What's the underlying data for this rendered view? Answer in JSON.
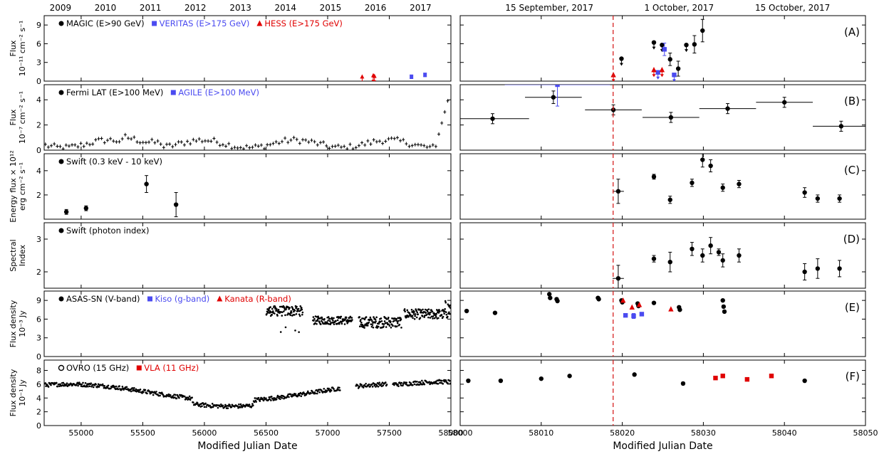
{
  "chart_data": {
    "type": "scatter",
    "xlabel": "Modified Julian Date",
    "top_axis_left": {
      "labels": [
        "2009",
        "2010",
        "2011",
        "2012",
        "2013",
        "2014",
        "2015",
        "2016",
        "2017"
      ],
      "mjd": [
        54832,
        55197,
        55562,
        55927,
        56293,
        56658,
        57023,
        57388,
        57754
      ]
    },
    "top_axis_right": {
      "labels": [
        "15 September, 2017",
        "1 October, 2017",
        "15 October, 2017"
      ],
      "mjd": [
        58011,
        58027,
        58041
      ]
    },
    "xlim_left": [
      54700,
      58000
    ],
    "xlim_right": [
      58000,
      58050
    ],
    "xticks_left": [
      55000,
      55500,
      56000,
      56500,
      57000,
      57500,
      58000
    ],
    "xticks_right": [
      58000,
      58010,
      58020,
      58030,
      58040,
      58050
    ],
    "event_mjd": 58018.87,
    "panels": [
      {
        "id": "A",
        "label": "(A)",
        "ylabel": [
          "Flux",
          "10⁻¹¹ cm⁻² s⁻¹"
        ],
        "ylim": [
          0,
          10.5
        ],
        "yticks": [
          0,
          3,
          6,
          9
        ],
        "legend": [
          {
            "marker": "circle",
            "color": "#000000",
            "text": "MAGIC (E>90 GeV)"
          },
          {
            "marker": "square",
            "color": "#4b4bf0",
            "text": "VERITAS (E>175 GeV)"
          },
          {
            "marker": "triangle",
            "color": "#e00000",
            "text": "HESS (E>175 GeV)"
          }
        ],
        "series": [
          {
            "name": "MAGIC",
            "marker": "circle",
            "color": "#000000",
            "points": [
              {
                "x": 58019.9,
                "y": 3.6,
                "ul": true
              },
              {
                "x": 58023.9,
                "y": 6.2,
                "ul": true
              },
              {
                "x": 58024.9,
                "y": 5.8,
                "ul": true
              },
              {
                "x": 58025.9,
                "y": 3.5,
                "e": 1.0
              },
              {
                "x": 58026.9,
                "y": 2.0,
                "e": 1.2
              },
              {
                "x": 58027.9,
                "y": 5.8,
                "ul": true
              },
              {
                "x": 58028.9,
                "y": 5.9,
                "e": 1.4
              },
              {
                "x": 58029.9,
                "y": 8.1,
                "e": 1.8
              }
            ]
          },
          {
            "name": "VERITAS",
            "marker": "square",
            "color": "#4b4bf0",
            "points": [
              {
                "x": 57680,
                "y": 0.7,
                "e": 0.3
              },
              {
                "x": 57790,
                "y": 1.0,
                "e": 0.3
              },
              {
                "x": 58024.4,
                "y": 1.4,
                "ul": true
              },
              {
                "x": 58025.2,
                "y": 5.1,
                "e": 1.0
              },
              {
                "x": 58026.4,
                "y": 1.0,
                "ul": true
              }
            ]
          },
          {
            "name": "HESS",
            "marker": "triangle",
            "color": "#e00000",
            "points": [
              {
                "x": 57280,
                "y": 0.7,
                "ul": true
              },
              {
                "x": 57370,
                "y": 0.9,
                "ul": true
              },
              {
                "x": 57380,
                "y": 0.8,
                "ul": true
              },
              {
                "x": 58018.9,
                "y": 1.0,
                "ul": true
              },
              {
                "x": 58023.9,
                "y": 1.8,
                "ul": true
              },
              {
                "x": 58024.9,
                "y": 1.8,
                "ul": true
              }
            ]
          }
        ]
      },
      {
        "id": "B",
        "label": "(B)",
        "ylabel": [
          "Flux",
          "10⁻⁷ cm⁻² s⁻¹"
        ],
        "ylim": [
          0,
          5.2
        ],
        "yticks": [
          0,
          2,
          4
        ],
        "legend": [
          {
            "marker": "circle",
            "color": "#000000",
            "text": "Fermi LAT (E>100 MeV)"
          },
          {
            "marker": "square",
            "color": "#4b4bf0",
            "text": "AGILE (E>100 MeV)"
          }
        ],
        "series": [
          {
            "name": "Fermi LAT",
            "marker": "circle",
            "color": "#000000",
            "points": [
              {
                "x": 58004.0,
                "y": 2.5,
                "e": 0.4,
                "xe": 4.5
              },
              {
                "x": 58011.5,
                "y": 4.2,
                "e": 0.5,
                "xe": 3.5
              },
              {
                "x": 58018.9,
                "y": 3.2,
                "e": 0.4,
                "xe": 3.5
              },
              {
                "x": 58026.0,
                "y": 2.6,
                "e": 0.4,
                "xe": 3.5
              },
              {
                "x": 58033.0,
                "y": 3.3,
                "e": 0.4,
                "xe": 3.5
              },
              {
                "x": 58040.0,
                "y": 3.8,
                "e": 0.4,
                "xe": 3.5
              },
              {
                "x": 58047.0,
                "y": 1.9,
                "e": 0.4,
                "xe": 3.5
              }
            ]
          },
          {
            "name": "AGILE",
            "marker": "square",
            "color": "#4b4bf0",
            "points": [
              {
                "x": 58012.0,
                "y": 5.2,
                "e": 1.7,
                "xe": 6.5
              }
            ]
          }
        ],
        "fermi_long_term_weekly": "dense cross markers between 0.1 and 1.5 from MJD 54700 to 57900, rising to about 3.7 near MJD 57950"
      },
      {
        "id": "C",
        "label": "(C)",
        "ylabel": [
          "Energy flux × 10¹²",
          "erg cm⁻² s⁻¹"
        ],
        "ylim": [
          0,
          5.4
        ],
        "yticks": [
          2,
          4
        ],
        "legend": [
          {
            "marker": "circle",
            "color": "#000000",
            "text": "Swift (0.3 keV - 10 keV)"
          }
        ],
        "series": [
          {
            "name": "Swift XRT",
            "marker": "circle",
            "color": "#000000",
            "points": [
              {
                "x": 54880,
                "y": 0.6,
                "e": 0.2
              },
              {
                "x": 55040,
                "y": 0.9,
                "e": 0.2
              },
              {
                "x": 55530,
                "y": 2.9,
                "e": 0.7
              },
              {
                "x": 55770,
                "y": 1.2,
                "e": 1.0
              },
              {
                "x": 58019.5,
                "y": 2.3,
                "e": 1.0,
                "xe": 0.7
              },
              {
                "x": 58023.9,
                "y": 3.5,
                "e": 0.2
              },
              {
                "x": 58025.9,
                "y": 1.6,
                "e": 0.3
              },
              {
                "x": 58028.6,
                "y": 3.0,
                "e": 0.3
              },
              {
                "x": 58029.9,
                "y": 4.9,
                "e": 0.6
              },
              {
                "x": 58030.9,
                "y": 4.4,
                "e": 0.5
              },
              {
                "x": 58032.4,
                "y": 2.6,
                "e": 0.3
              },
              {
                "x": 58034.4,
                "y": 2.9,
                "e": 0.3
              },
              {
                "x": 58042.5,
                "y": 2.2,
                "e": 0.4
              },
              {
                "x": 58044.1,
                "y": 1.7,
                "e": 0.3
              },
              {
                "x": 58046.8,
                "y": 1.7,
                "e": 0.3
              }
            ]
          }
        ]
      },
      {
        "id": "D",
        "label": "(D)",
        "ylabel": [
          "Spectral",
          "Index"
        ],
        "ylim": [
          1.5,
          3.5
        ],
        "yticks": [
          2,
          3
        ],
        "legend": [
          {
            "marker": "circle",
            "color": "#000000",
            "text": "Swift (photon index)"
          }
        ],
        "series": [
          {
            "name": "Swift photon index",
            "marker": "circle",
            "color": "#000000",
            "points": [
              {
                "x": 58019.5,
                "y": 1.8,
                "e": 0.4,
                "xe": 0.7
              },
              {
                "x": 58023.9,
                "y": 2.4,
                "e": 0.1
              },
              {
                "x": 58025.9,
                "y": 2.3,
                "e": 0.3
              },
              {
                "x": 58028.6,
                "y": 2.7,
                "e": 0.2
              },
              {
                "x": 58029.9,
                "y": 2.5,
                "e": 0.2
              },
              {
                "x": 58030.9,
                "y": 2.8,
                "e": 0.25
              },
              {
                "x": 58031.9,
                "y": 2.6,
                "e": 0.1
              },
              {
                "x": 58032.4,
                "y": 2.35,
                "e": 0.2
              },
              {
                "x": 58034.4,
                "y": 2.5,
                "e": 0.2
              },
              {
                "x": 58042.5,
                "y": 2.0,
                "e": 0.25
              },
              {
                "x": 58044.1,
                "y": 2.1,
                "e": 0.3
              },
              {
                "x": 58046.8,
                "y": 2.1,
                "e": 0.25
              }
            ]
          }
        ]
      },
      {
        "id": "E",
        "label": "(E)",
        "ylabel": [
          "Flux density",
          "10⁻³ Jy"
        ],
        "ylim": [
          0,
          10.5
        ],
        "yticks": [
          0,
          3,
          6,
          9
        ],
        "legend": [
          {
            "marker": "circle",
            "color": "#000000",
            "text": "ASAS-SN (V-band)"
          },
          {
            "marker": "square",
            "color": "#4b4bf0",
            "text": "Kiso (g-band)"
          },
          {
            "marker": "triangle",
            "color": "#e00000",
            "text": "Kanata (R-band)"
          }
        ],
        "series": [
          {
            "name": "ASAS-SN",
            "marker": "circle",
            "color": "#000000",
            "points": [
              {
                "x": 58000.8,
                "y": 7.3
              },
              {
                "x": 58004.3,
                "y": 7.0
              },
              {
                "x": 58011.0,
                "y": 10.0
              },
              {
                "x": 58011.1,
                "y": 9.4
              },
              {
                "x": 58011.9,
                "y": 9.2
              },
              {
                "x": 58012.0,
                "y": 8.9
              },
              {
                "x": 58017.0,
                "y": 9.4
              },
              {
                "x": 58017.1,
                "y": 9.2
              },
              {
                "x": 58019.9,
                "y": 9.0
              },
              {
                "x": 58020.0,
                "y": 8.7
              },
              {
                "x": 58021.9,
                "y": 8.5
              },
              {
                "x": 58022.0,
                "y": 8.1
              },
              {
                "x": 58023.9,
                "y": 8.6
              },
              {
                "x": 58027.0,
                "y": 7.9
              },
              {
                "x": 58027.1,
                "y": 7.5
              },
              {
                "x": 58032.4,
                "y": 9.0
              },
              {
                "x": 58032.5,
                "y": 8.0
              },
              {
                "x": 58032.6,
                "y": 7.2
              }
            ]
          },
          {
            "name": "Kiso",
            "marker": "square",
            "color": "#4b4bf0",
            "points": [
              {
                "x": 58020.4,
                "y": 6.6
              },
              {
                "x": 58021.4,
                "y": 6.5,
                "e": 0.4
              },
              {
                "x": 58022.4,
                "y": 6.8
              }
            ]
          },
          {
            "name": "Kanata",
            "marker": "triangle",
            "color": "#e00000",
            "points": [
              {
                "x": 58020.1,
                "y": 9.0
              },
              {
                "x": 58021.2,
                "y": 7.9
              },
              {
                "x": 58022.1,
                "y": 8.3
              },
              {
                "x": 58026.0,
                "y": 7.6
              }
            ]
          }
        ],
        "asassn_long_term": "dense markers between 4 and 10 from MJD 56500 to 58000"
      },
      {
        "id": "F",
        "label": "(F)",
        "ylabel": [
          "Flux density",
          "10⁻¹ Jy"
        ],
        "ylim": [
          0,
          9.5
        ],
        "yticks": [
          0,
          2,
          4,
          6,
          8
        ],
        "legend": [
          {
            "marker": "circle-open",
            "color": "#000000",
            "text": "OVRO (15 GHz)"
          },
          {
            "marker": "square",
            "color": "#e00000",
            "text": "VLA (11 GHz)"
          }
        ],
        "series": [
          {
            "name": "OVRO",
            "marker": "circle",
            "color": "#000000",
            "points": [
              {
                "x": 58001.0,
                "y": 6.5
              },
              {
                "x": 58005.0,
                "y": 6.5
              },
              {
                "x": 58010.0,
                "y": 6.8
              },
              {
                "x": 58013.5,
                "y": 7.2
              },
              {
                "x": 58021.5,
                "y": 7.4
              },
              {
                "x": 58027.5,
                "y": 6.1
              },
              {
                "x": 58042.5,
                "y": 6.5
              }
            ]
          },
          {
            "name": "VLA",
            "marker": "square",
            "color": "#e00000",
            "points": [
              {
                "x": 58031.5,
                "y": 6.9
              },
              {
                "x": 58032.4,
                "y": 7.2
              },
              {
                "x": 58035.4,
                "y": 6.7
              },
              {
                "x": 58038.4,
                "y": 7.2
              }
            ]
          }
        ],
        "ovro_long_term": "dense markers between 3 and 7 from MJD 54700 to 58000"
      }
    ]
  },
  "colors": {
    "black": "#000000",
    "blue": "#4b4bf0",
    "red": "#e00000",
    "event_line": "#d62020"
  }
}
